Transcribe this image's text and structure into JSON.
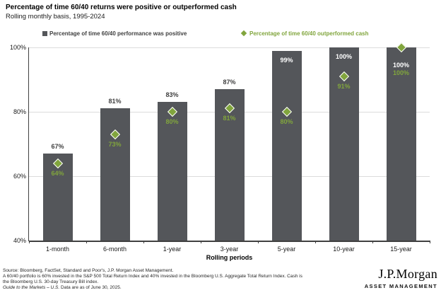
{
  "header": {
    "title": "Percentage of time 60/40 returns were positive or outperformed cash",
    "subtitle": "Rolling monthly basis, 1995-2024"
  },
  "legend": {
    "bar_label": "Percentage of time 60/40 performance was positive",
    "diamond_label": "Percentage of time 60/40 outperformed cash"
  },
  "chart_data": {
    "type": "bar",
    "title": "Percentage of time 60/40 returns were positive or outperformed cash",
    "subtitle": "Rolling monthly basis, 1995-2024",
    "categories": [
      "1-month",
      "6-month",
      "1-year",
      "3-year",
      "5-year",
      "10-year",
      "15-year"
    ],
    "series": [
      {
        "name": "Percentage of time 60/40 performance was positive",
        "type": "bar",
        "values": [
          67,
          81,
          83,
          87,
          99,
          100,
          100
        ]
      },
      {
        "name": "Percentage of time 60/40 outperformed cash",
        "type": "scatter",
        "marker": "diamond",
        "values": [
          64,
          73,
          80,
          81,
          80,
          91,
          100
        ]
      }
    ],
    "xlabel": "Rolling periods",
    "ylabel": "",
    "ylim": [
      40,
      100
    ],
    "yticks": [
      100,
      80,
      60,
      40
    ],
    "ytick_suffix": "%",
    "grid": "horizontal",
    "legend_position": "top",
    "bar_label_inside": [
      false,
      false,
      false,
      false,
      true,
      true,
      true
    ]
  },
  "colors": {
    "bar": "#54565a",
    "green": "#81a53d",
    "grid": "#dcdcdc",
    "axis": "#404040",
    "bar_label_dark": "#404040",
    "bar_label_light": "#ffffff"
  },
  "footer": {
    "line1": "Source: Bloomberg, FactSet, Standard and Poor's, J.P. Morgan Asset Management.",
    "line2": "A 60/40 portfolio is 60% invested in the S&P 500 Total Return Index and 40% invested in the Bloomberg U.S. Aggregate Total Return Index. Cash is",
    "line3": "the Bloomberg U.S. 30-day Treasury Bill index.",
    "line4_italic": "Guide to the Markets – U.S.",
    "line4_rest": " Data are as of June 30, 2025."
  },
  "logo": {
    "brand": "J.P.Morgan",
    "division": "ASSET MANAGEMENT"
  }
}
